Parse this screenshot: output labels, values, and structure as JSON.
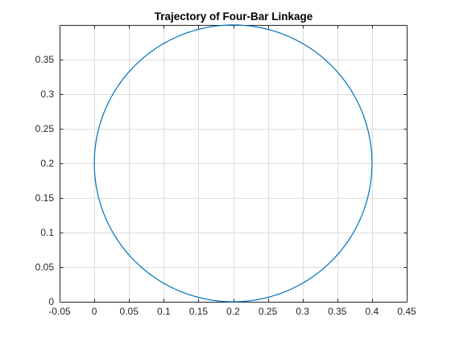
{
  "chart_data": {
    "type": "line",
    "title": "Trajectory of Four-Bar Linkage",
    "xlabel": "",
    "ylabel": "",
    "xlim": [
      -0.05,
      0.45
    ],
    "ylim": [
      0,
      0.4
    ],
    "xticks": [
      -0.05,
      0,
      0.05,
      0.1,
      0.15,
      0.2,
      0.25,
      0.3,
      0.35,
      0.4,
      0.45
    ],
    "xtick_labels": [
      "-0.05",
      "0",
      "0.05",
      "0.1",
      "0.15",
      "0.2",
      "0.25",
      "0.3",
      "0.35",
      "0.4",
      "0.45"
    ],
    "yticks": [
      0,
      0.05,
      0.1,
      0.15,
      0.2,
      0.25,
      0.3,
      0.35
    ],
    "ytick_labels": [
      "0",
      "0.05",
      "0.1",
      "0.15",
      "0.2",
      "0.25",
      "0.3",
      "0.35"
    ],
    "grid": true,
    "series": [
      {
        "color": "#0072bd",
        "shape": "circle",
        "center": [
          0.2,
          0.2
        ],
        "radius": 0.2
      }
    ]
  }
}
